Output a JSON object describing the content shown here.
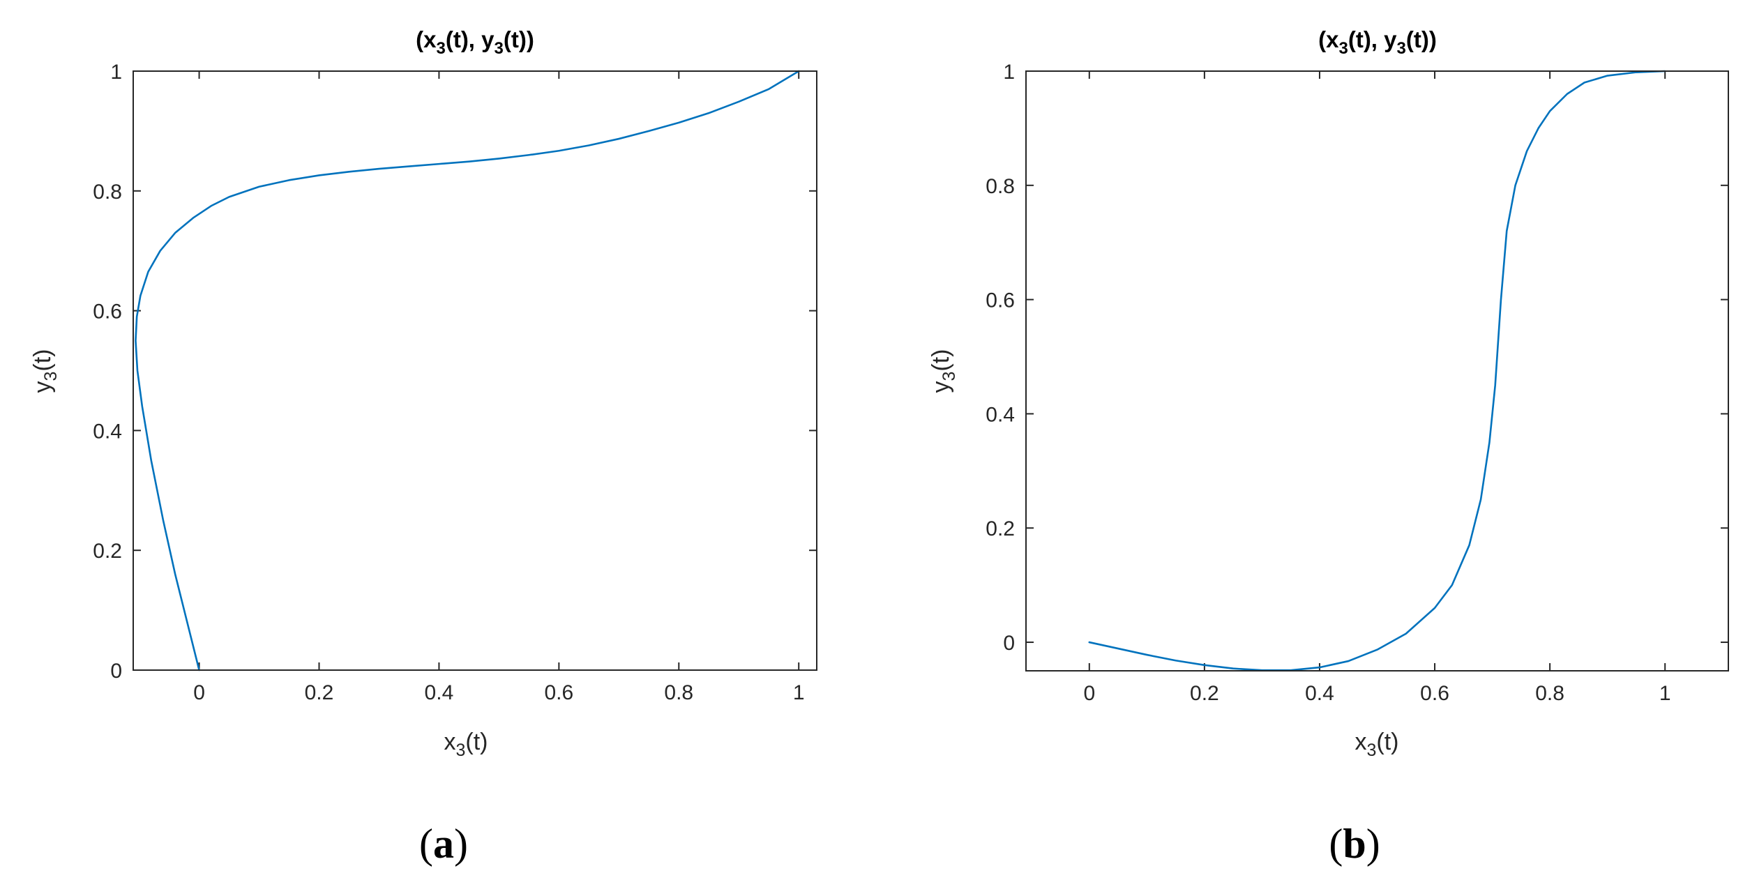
{
  "chart_data": [
    {
      "id": "a",
      "type": "line",
      "caption": {
        "open": "(",
        "letter": "a",
        "close": ")"
      },
      "title": {
        "open": "(x",
        "sub1": "3",
        "mid": "(t), y",
        "sub2": "3",
        "close": "(t))"
      },
      "xlabel": {
        "base": "x",
        "sub": "3",
        "tail": "(t)"
      },
      "ylabel": {
        "base": "y",
        "sub": "3",
        "tail": "(t)"
      },
      "xlim": [
        -0.11,
        1.03
      ],
      "ylim": [
        0,
        1
      ],
      "xticks": [
        0,
        0.2,
        0.4,
        0.6,
        0.8,
        1
      ],
      "xtick_labels": [
        "0",
        "0.2",
        "0.4",
        "0.6",
        "0.8",
        "1"
      ],
      "yticks": [
        0,
        0.2,
        0.4,
        0.6,
        0.8,
        1
      ],
      "ytick_labels": [
        "0",
        "0.2",
        "0.4",
        "0.6",
        "0.8",
        "1"
      ],
      "grid": false,
      "line_color": "#0072BD",
      "series": [
        {
          "x": [
            0,
            -0.02,
            -0.04,
            -0.06,
            -0.08,
            -0.095,
            -0.103,
            -0.106,
            -0.104,
            -0.098,
            -0.085,
            -0.065,
            -0.04,
            -0.01,
            0.02,
            0.05,
            0.1,
            0.15,
            0.2,
            0.25,
            0.3,
            0.35,
            0.4,
            0.45,
            0.5,
            0.55,
            0.6,
            0.65,
            0.7,
            0.75,
            0.8,
            0.85,
            0.9,
            0.95,
            1.0
          ],
          "y": [
            0,
            0.08,
            0.16,
            0.25,
            0.35,
            0.44,
            0.5,
            0.55,
            0.59,
            0.625,
            0.665,
            0.7,
            0.73,
            0.755,
            0.775,
            0.79,
            0.807,
            0.818,
            0.826,
            0.832,
            0.837,
            0.841,
            0.845,
            0.849,
            0.854,
            0.86,
            0.867,
            0.876,
            0.887,
            0.9,
            0.914,
            0.93,
            0.949,
            0.97,
            1.0
          ]
        }
      ]
    },
    {
      "id": "b",
      "type": "line",
      "caption": {
        "open": "(",
        "letter": "b",
        "close": ")"
      },
      "title": {
        "open": "(x",
        "sub1": "3",
        "mid": "(t), y",
        "sub2": "3",
        "close": "(t))"
      },
      "xlabel": {
        "base": "x",
        "sub": "3",
        "tail": "(t)"
      },
      "ylabel": {
        "base": "y",
        "sub": "3",
        "tail": "(t)"
      },
      "xlim": [
        -0.11,
        1.11
      ],
      "ylim": [
        -0.05,
        1
      ],
      "xticks": [
        0,
        0.2,
        0.4,
        0.6,
        0.8,
        1
      ],
      "xtick_labels": [
        "0",
        "0.2",
        "0.4",
        "0.6",
        "0.8",
        "1"
      ],
      "yticks": [
        0,
        0.2,
        0.4,
        0.6,
        0.8,
        1
      ],
      "ytick_labels": [
        "0",
        "0.2",
        "0.4",
        "0.6",
        "0.8",
        "1"
      ],
      "grid": false,
      "line_color": "#0072BD",
      "series": [
        {
          "x": [
            0,
            0.05,
            0.1,
            0.15,
            0.2,
            0.25,
            0.3,
            0.35,
            0.4,
            0.45,
            0.5,
            0.55,
            0.6,
            0.63,
            0.66,
            0.68,
            0.695,
            0.705,
            0.715,
            0.725,
            0.74,
            0.76,
            0.78,
            0.8,
            0.83,
            0.86,
            0.9,
            0.95,
            1.0
          ],
          "y": [
            0,
            -0.011,
            -0.022,
            -0.032,
            -0.04,
            -0.046,
            -0.049,
            -0.049,
            -0.044,
            -0.033,
            -0.013,
            0.015,
            0.06,
            0.1,
            0.17,
            0.25,
            0.35,
            0.45,
            0.6,
            0.72,
            0.8,
            0.86,
            0.9,
            0.93,
            0.96,
            0.98,
            0.992,
            0.998,
            1.0
          ]
        }
      ]
    }
  ]
}
